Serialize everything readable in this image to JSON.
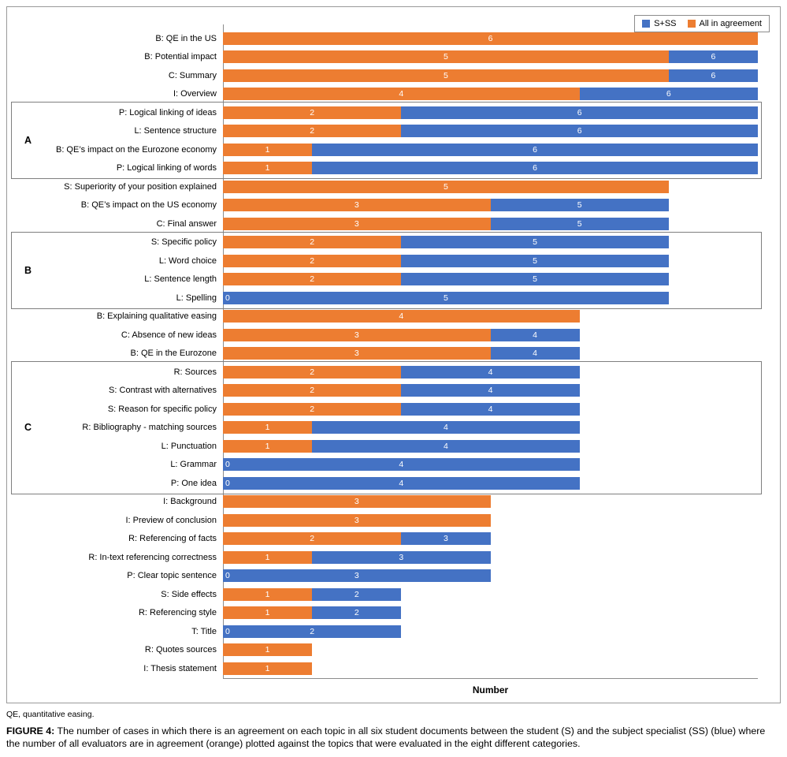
{
  "chart_data": {
    "type": "bar",
    "orientation": "horizontal",
    "overlapping": true,
    "title": "",
    "xlabel": "Number",
    "ylabel": "",
    "xlim": [
      0,
      6
    ],
    "grid": false,
    "legend_position": "top-right",
    "categories": [
      "B: QE in the US",
      "B: Potential impact",
      "C: Summary",
      "I: Overview",
      "P: Logical linking of ideas",
      "L: Sentence structure",
      "B: QE’s impact on the Eurozone economy",
      "P: Logical linking of words",
      "S: Superiority of your position explained",
      "B: QE’s impact on the US economy",
      "C: Final answer",
      "S: Specific policy",
      "L: Word choice",
      "L: Sentence length",
      "L: Spelling",
      "B: Explaining qualitative easing",
      "C: Absence of new ideas",
      "B: QE in the Eurozone",
      "R: Sources",
      "S: Contrast with alternatives",
      "S: Reason for specific policy",
      "R: Bibliography - matching sources",
      "L: Punctuation",
      "L: Grammar",
      "P: One idea",
      "I: Background",
      "I: Preview of conclusion",
      "R: Referencing of facts",
      "R: In-text referencing correctness",
      "P: Clear topic sentence",
      "S: Side effects",
      "R: Referencing style",
      "T: Title",
      "R: Quotes sources",
      "I: Thesis statement"
    ],
    "series": [
      {
        "name": "S+SS",
        "color": "#4472C4",
        "values": [
          6,
          6,
          6,
          6,
          6,
          6,
          6,
          6,
          5,
          5,
          5,
          5,
          5,
          5,
          5,
          4,
          4,
          4,
          4,
          4,
          4,
          4,
          4,
          4,
          4,
          3,
          3,
          3,
          3,
          3,
          2,
          2,
          2,
          1,
          1
        ]
      },
      {
        "name": "All in agreement",
        "color": "#ED7D31",
        "values": [
          6,
          5,
          5,
          4,
          2,
          2,
          1,
          1,
          5,
          3,
          3,
          2,
          2,
          2,
          0,
          4,
          3,
          3,
          2,
          2,
          2,
          1,
          1,
          0,
          0,
          3,
          3,
          2,
          1,
          0,
          1,
          1,
          0,
          1,
          1
        ]
      }
    ],
    "groups": [
      {
        "label": "A",
        "start": 4,
        "end": 7
      },
      {
        "label": "B",
        "start": 11,
        "end": 14
      },
      {
        "label": "C",
        "start": 18,
        "end": 24
      }
    ]
  },
  "footnote": "QE, quantitative easing.",
  "caption": {
    "label": "FIGURE 4:",
    "text": "The number of cases in which there is an agreement on each topic in all six student documents between the student (S) and the subject specialist (SS) (blue) where the number of all evaluators are in agreement (orange) plotted against the topics that were evaluated in the eight different categories."
  }
}
